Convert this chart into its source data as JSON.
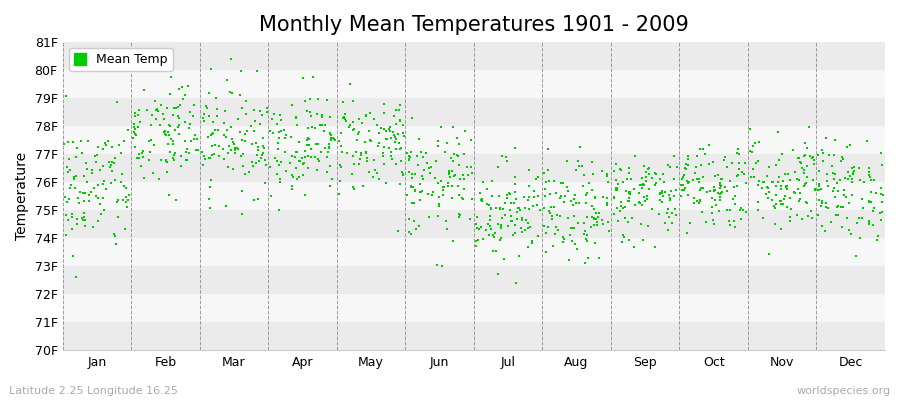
{
  "title": "Monthly Mean Temperatures 1901 - 2009",
  "ylabel": "Temperature",
  "xlabel_labels": [
    "Jan",
    "Feb",
    "Mar",
    "Apr",
    "May",
    "Jun",
    "Jul",
    "Aug",
    "Sep",
    "Oct",
    "Nov",
    "Dec"
  ],
  "ytick_labels": [
    "70F",
    "71F",
    "72F",
    "73F",
    "74F",
    "75F",
    "76F",
    "77F",
    "78F",
    "79F",
    "80F",
    "81F"
  ],
  "ytick_values": [
    70,
    71,
    72,
    73,
    74,
    75,
    76,
    77,
    78,
    79,
    80,
    81
  ],
  "ylim": [
    70,
    81
  ],
  "dot_color": "#00cc00",
  "dot_size": 3,
  "bg_color": "#ffffff",
  "plot_bg_color": "#ffffff",
  "stripe_colors": [
    "#ebebeb",
    "#f7f7f7"
  ],
  "vline_color": "#777777",
  "title_fontsize": 15,
  "axis_label_fontsize": 10,
  "tick_fontsize": 9,
  "legend_label": "Mean Temp",
  "bottom_left_text": "Latitude 2.25 Longitude 16.25",
  "bottom_right_text": "worldspecies.org",
  "n_years": 109,
  "seed": 42,
  "month_means": [
    75.8,
    77.7,
    77.6,
    77.4,
    77.4,
    75.9,
    75.0,
    74.9,
    75.5,
    75.9,
    76.0,
    75.7
  ],
  "month_stds": [
    1.2,
    1.1,
    1.0,
    0.9,
    0.9,
    1.0,
    0.9,
    0.9,
    0.8,
    0.8,
    0.9,
    0.9
  ]
}
